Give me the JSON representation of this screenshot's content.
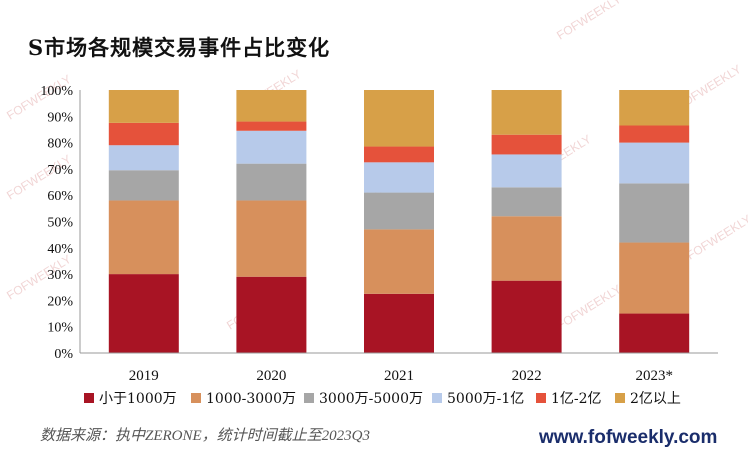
{
  "title": "S市场各规模交易事件占比变化",
  "source": "数据来源：执中ZERONE，统计时间截止至2023Q3",
  "website": "www.fofweekly.com",
  "watermark": "FOFWEEKLY",
  "chart_data": {
    "type": "bar",
    "stacked": true,
    "categories": [
      "2019",
      "2020",
      "2021",
      "2022",
      "2023*"
    ],
    "yticks": [
      "0%",
      "10%",
      "20%",
      "30%",
      "40%",
      "50%",
      "60%",
      "70%",
      "80%",
      "90%",
      "100%"
    ],
    "ylim": [
      0,
      100
    ],
    "series": [
      {
        "name": "小于1000万",
        "color": "#A81424",
        "values": [
          30,
          29,
          22.5,
          27.5,
          15
        ]
      },
      {
        "name": "1000-3000万",
        "color": "#D7905C",
        "values": [
          28,
          29,
          24.5,
          24.5,
          27
        ]
      },
      {
        "name": "3000万-5000万",
        "color": "#A6A6A6",
        "values": [
          11.5,
          14,
          14,
          11,
          22.5
        ]
      },
      {
        "name": "5000万-1亿",
        "color": "#B7CAEA",
        "values": [
          9.5,
          12.5,
          11.5,
          12.5,
          15.5
        ]
      },
      {
        "name": "1亿-2亿",
        "color": "#E5523B",
        "values": [
          8.5,
          3.5,
          6,
          7.5,
          6.5
        ]
      },
      {
        "name": "2亿以上",
        "color": "#D7A048",
        "values": [
          12.5,
          12,
          21.5,
          17,
          13.5
        ]
      }
    ],
    "legend_position": "bottom"
  }
}
